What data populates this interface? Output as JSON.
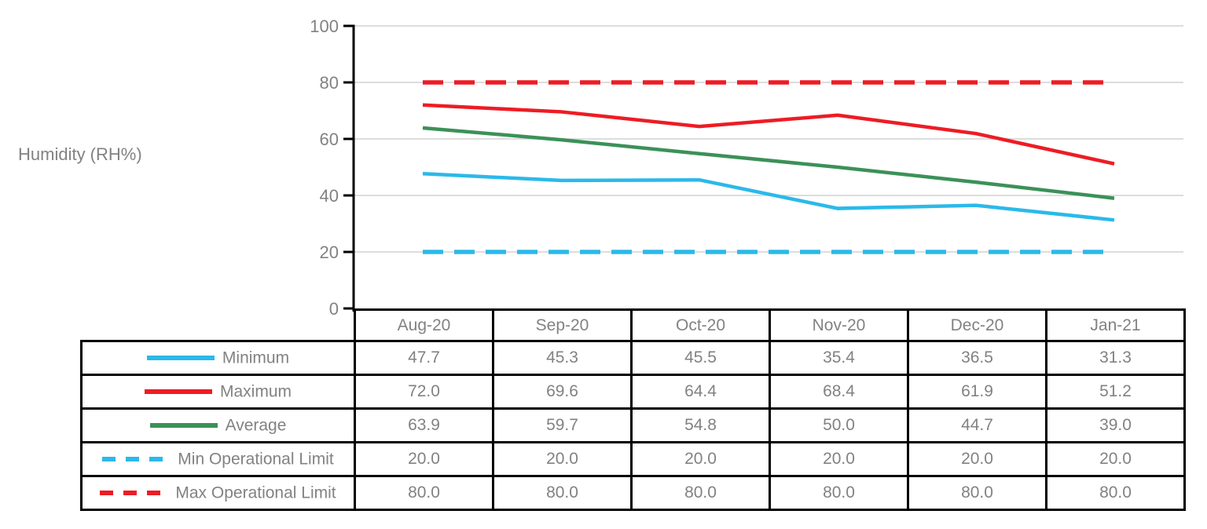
{
  "axis": {
    "label": "Humidity (RH%)",
    "ticks": [
      100,
      80,
      60,
      40,
      20,
      0
    ]
  },
  "chart_data": {
    "type": "line",
    "title": "",
    "xlabel": "",
    "ylabel": "Humidity (RH%)",
    "categories": [
      "Aug-20",
      "Sep-20",
      "Oct-20",
      "Nov-20",
      "Dec-20",
      "Jan-21"
    ],
    "ylim": [
      0,
      100
    ],
    "y_ticks": [
      0,
      20,
      40,
      60,
      80,
      100
    ],
    "grid": true,
    "legend_position": "table-left-column",
    "series": [
      {
        "name": "Minimum",
        "style": "solid",
        "color": "#2BB9E9",
        "values": [
          47.7,
          45.3,
          45.5,
          35.4,
          36.5,
          31.3
        ]
      },
      {
        "name": "Maximum",
        "style": "solid",
        "color": "#ED1C24",
        "values": [
          72.0,
          69.6,
          64.4,
          68.4,
          61.9,
          51.2
        ]
      },
      {
        "name": "Average",
        "style": "solid",
        "color": "#3B9158",
        "values": [
          63.9,
          59.7,
          54.8,
          50.0,
          44.7,
          39.0
        ]
      },
      {
        "name": "Min Operational Limit",
        "style": "dashed",
        "color": "#2BB9E9",
        "values": [
          20.0,
          20.0,
          20.0,
          20.0,
          20.0,
          20.0
        ]
      },
      {
        "name": "Max Operational Limit",
        "style": "dashed",
        "color": "#ED1C24",
        "values": [
          80.0,
          80.0,
          80.0,
          80.0,
          80.0,
          80.0
        ]
      }
    ]
  },
  "table": {
    "column_headers": [
      "Aug-20",
      "Sep-20",
      "Oct-20",
      "Nov-20",
      "Dec-20",
      "Jan-21"
    ],
    "rows": [
      {
        "label": "Minimum",
        "swatch": "solid",
        "color": "#2BB9E9",
        "values": [
          "47.7",
          "45.3",
          "45.5",
          "35.4",
          "36.5",
          "31.3"
        ]
      },
      {
        "label": "Maximum",
        "swatch": "solid",
        "color": "#ED1C24",
        "values": [
          "72.0",
          "69.6",
          "64.4",
          "68.4",
          "61.9",
          "51.2"
        ]
      },
      {
        "label": "Average",
        "swatch": "solid",
        "color": "#3B9158",
        "values": [
          "63.9",
          "59.7",
          "54.8",
          "50.0",
          "44.7",
          "39.0"
        ]
      },
      {
        "label": "Min Operational Limit",
        "swatch": "dashed",
        "color": "#2BB9E9",
        "values": [
          "20.0",
          "20.0",
          "20.0",
          "20.0",
          "20.0",
          "20.0"
        ]
      },
      {
        "label": "Max Operational Limit",
        "swatch": "dashed",
        "color": "#ED1C24",
        "values": [
          "80.0",
          "80.0",
          "80.0",
          "80.0",
          "80.0",
          "80.0"
        ]
      }
    ]
  },
  "colors": {
    "grid": "#D2D2D2",
    "axis": "#000000",
    "text": "#828282",
    "table_border": "#000000",
    "background": "#FFFFFF"
  }
}
